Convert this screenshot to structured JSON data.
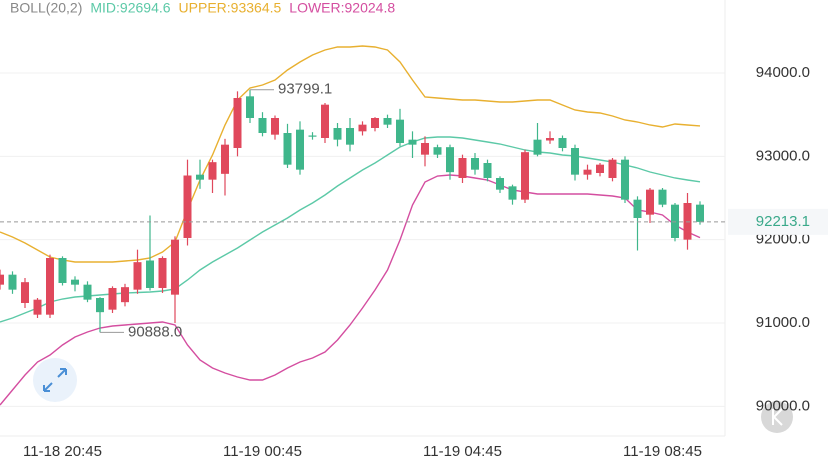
{
  "chart_data": {
    "type": "candlestick",
    "indicator": "BOLL(20,2)",
    "categories": [
      null,
      null,
      null,
      null,
      null,
      "11-18 20:45",
      null,
      null,
      null,
      null,
      null,
      null,
      null,
      null,
      null,
      null,
      null,
      null,
      null,
      null,
      null,
      "11-19 00:45",
      null,
      null,
      null,
      null,
      null,
      null,
      null,
      null,
      null,
      null,
      null,
      null,
      null,
      null,
      null,
      "11-19 04:45",
      null,
      null,
      null,
      null,
      null,
      null,
      null,
      null,
      null,
      null,
      null,
      null,
      null,
      null,
      null,
      "11-19 08:45",
      null,
      null,
      null
    ],
    "open": [
      91460,
      91580,
      91240,
      91100,
      91100,
      91780,
      91520,
      91460,
      91300,
      91160,
      91250,
      91400,
      91750,
      91420,
      91340,
      92020,
      92780,
      92720,
      92790,
      93100,
      93720,
      93460,
      93260,
      93280,
      93320,
      93250,
      93220,
      93340,
      93340,
      93300,
      93340,
      93460,
      93440,
      93200,
      93020,
      93110,
      93110,
      92740,
      92980,
      92920,
      92740,
      92640,
      92480,
      93200,
      93190,
      93220,
      93100,
      92780,
      92800,
      92740,
      92960,
      92480,
      92300,
      92600,
      92420,
      92000,
      92420
    ],
    "high": [
      91640,
      91620,
      91540,
      91300,
      91820,
      91800,
      91560,
      91500,
      91310,
      91440,
      91470,
      91880,
      92290,
      91800,
      92040,
      92960,
      92960,
      92960,
      93210,
      93780,
      93799.1,
      93530,
      93490,
      93390,
      93420,
      93290,
      93640,
      93400,
      93460,
      93420,
      93470,
      93500,
      93570,
      93300,
      93240,
      93140,
      93140,
      93020,
      93040,
      92960,
      92760,
      92660,
      93080,
      93400,
      93300,
      93250,
      93140,
      92900,
      92920,
      92980,
      93000,
      92520,
      92620,
      92620,
      92440,
      92560,
      92460
    ],
    "low": [
      91400,
      91350,
      91180,
      91060,
      91060,
      91450,
      91380,
      91250,
      90888,
      91120,
      91200,
      91350,
      91390,
      91360,
      91000,
      91930,
      92610,
      92560,
      92530,
      93000,
      93400,
      93240,
      93200,
      92860,
      92780,
      93200,
      93160,
      93120,
      93060,
      93250,
      93300,
      93340,
      93120,
      92980,
      92880,
      92980,
      92720,
      92680,
      92780,
      92700,
      92560,
      92420,
      92440,
      93000,
      93150,
      93060,
      92710,
      92720,
      92760,
      92700,
      92440,
      91870,
      92200,
      92390,
      91980,
      91880,
      92180
    ],
    "close": [
      91580,
      91400,
      91490,
      91280,
      91780,
      91480,
      91460,
      91280,
      91130,
      91420,
      91430,
      91730,
      91420,
      91780,
      92000,
      92770,
      92720,
      92930,
      93140,
      93700,
      93460,
      93280,
      93460,
      92900,
      92840,
      93240,
      93620,
      93200,
      93140,
      93380,
      93460,
      93380,
      93160,
      93140,
      93160,
      93020,
      92810,
      92980,
      92840,
      92740,
      92600,
      92480,
      93050,
      93020,
      93220,
      93100,
      92780,
      92840,
      92900,
      92960,
      92480,
      92260,
      92600,
      92420,
      92020,
      92440,
      92213.1
    ],
    "up_color": "#e0485c",
    "down_color": "#3fb68b",
    "bands": [
      {
        "name": "MID:92694.6",
        "color": "#5cc9a7",
        "values": [
          91012,
          91060,
          91120,
          91180,
          91252,
          91288,
          91312,
          91324,
          91336,
          91348,
          91360,
          91366,
          91372,
          91384,
          91408,
          91516,
          91636,
          91732,
          91816,
          91900,
          91996,
          92092,
          92176,
          92260,
          92356,
          92440,
          92536,
          92644,
          92740,
          92836,
          92920,
          93016,
          93112,
          93172,
          93220,
          93232,
          93232,
          93220,
          93196,
          93172,
          93148,
          93112,
          93076,
          93052,
          93040,
          93016,
          93004,
          92980,
          92956,
          92932,
          92896,
          92860,
          92812,
          92776,
          92740,
          92716,
          92694.6
        ]
      },
      {
        "name": "UPPER:93364.5",
        "color": "#e8b030",
        "values": [
          92092,
          92032,
          91960,
          91876,
          91792,
          91756,
          91732,
          91732,
          91732,
          91732,
          91744,
          91756,
          91780,
          91852,
          91972,
          92356,
          92716,
          93016,
          93376,
          93676,
          93820,
          93856,
          93916,
          94036,
          94132,
          94216,
          94276,
          94312,
          94312,
          94324,
          94312,
          94276,
          94132,
          93916,
          93712,
          93700,
          93688,
          93676,
          93676,
          93664,
          93652,
          93652,
          93664,
          93676,
          93676,
          93616,
          93556,
          93532,
          93520,
          93484,
          93436,
          93412,
          93376,
          93352,
          93388,
          93376,
          93364.5
        ]
      },
      {
        "name": "LOWER:92024.8",
        "color": "#d44ea0",
        "values": [
          90016,
          90196,
          90376,
          90532,
          90616,
          90736,
          90832,
          90892,
          90940,
          90964,
          90976,
          90988,
          91000,
          91012,
          90976,
          90736,
          90556,
          90460,
          90400,
          90352,
          90316,
          90316,
          90376,
          90460,
          90532,
          90580,
          90652,
          90796,
          90976,
          91180,
          91396,
          91636,
          91996,
          92416,
          92692,
          92764,
          92776,
          92764,
          92740,
          92716,
          92656,
          92596,
          92572,
          92548,
          92548,
          92548,
          92548,
          92548,
          92536,
          92524,
          92500,
          92356,
          92332,
          92296,
          92176,
          92092,
          92024.8
        ]
      }
    ],
    "annotations": [
      {
        "text": "93799.1",
        "value": 93799.1
      },
      {
        "text": "90888.0",
        "value": 90888
      }
    ],
    "last_price": 92213.1,
    "ylim": [
      89644,
      94876
    ],
    "yticks": [
      {
        "value": 90000,
        "label": "90000.0"
      },
      {
        "value": 91000,
        "label": "91000.0"
      },
      {
        "value": 92000,
        "label": "92000.0"
      },
      {
        "value": 93000,
        "label": "93000.0"
      },
      {
        "value": 94000,
        "label": "94000.0"
      }
    ],
    "grid": true
  }
}
